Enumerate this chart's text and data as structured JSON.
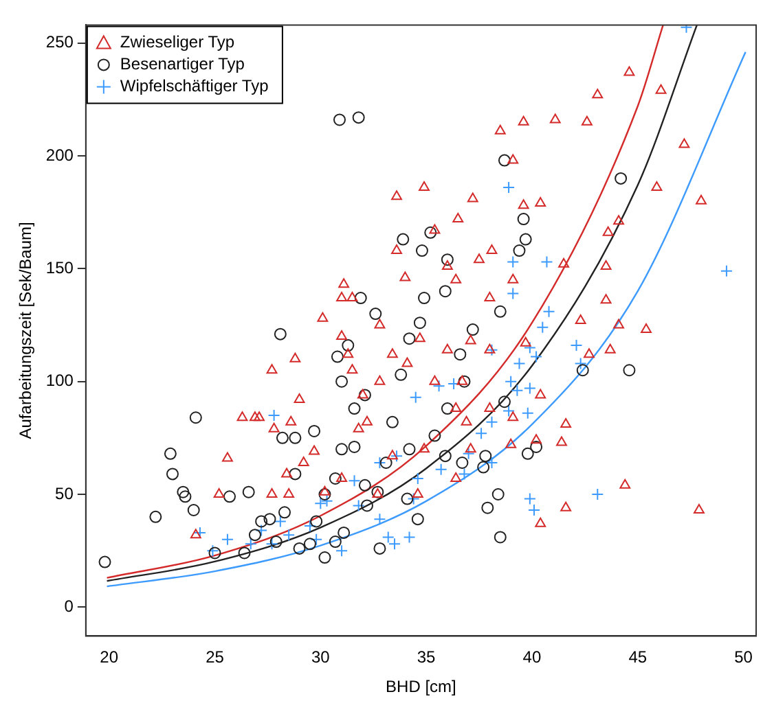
{
  "chart_data": {
    "type": "scatter",
    "xlabel": "BHD [cm]",
    "ylabel": "Aufarbeitungszeit [Sek/Baum]",
    "xlim": [
      18.9,
      50.6
    ],
    "ylim": [
      -12.8,
      258
    ],
    "xticks": [
      20,
      25,
      30,
      35,
      40,
      45,
      50
    ],
    "yticks": [
      0,
      50,
      100,
      150,
      200,
      250
    ],
    "grid": false,
    "legend": "top left",
    "series": [
      {
        "name": "Zwieseliger Typ",
        "color": "#d42a2a",
        "marker": "triangle",
        "x": [
          24.1,
          25.2,
          25.6,
          26.3,
          26.9,
          27.7,
          27.1,
          27.8,
          27.7,
          28.5,
          28.4,
          28.6,
          29.0,
          29.7,
          28.8,
          30.1,
          31.0,
          31.1,
          31.5,
          31.0,
          31.3,
          32.0,
          32.8,
          33.4,
          33.6,
          33.6,
          34.9,
          35.4,
          36.5,
          37.2,
          37.5,
          38.5,
          39.6,
          39.1,
          39.6,
          40.4,
          41.1,
          42.6,
          43.1,
          44.6,
          46.1,
          47.2,
          48.0,
          45.9,
          44.1,
          43.5,
          43.6,
          41.5,
          43.5,
          44.1,
          45.4,
          43.7,
          39.1,
          36.0,
          36.4,
          38.0,
          38.0,
          36.0,
          34.7,
          35.4,
          34.1,
          36.7,
          36.9,
          38.0,
          39.1,
          39.0,
          41.4,
          40.4,
          39.7,
          41.6,
          40.2,
          42.3,
          42.7,
          41.6,
          40.4,
          44.4,
          47.9,
          31.5,
          32.8,
          32.2,
          33.4,
          34.9,
          36.4,
          37.1,
          32.7,
          30.2,
          31.0,
          34.6,
          36.4,
          34.0,
          31.8,
          29.2,
          37.1,
          38.1
        ],
        "values": [
          32,
          50,
          66,
          84,
          84,
          105,
          84,
          79,
          50,
          50,
          59,
          82,
          92,
          69,
          110,
          128,
          137,
          143,
          137,
          120,
          112,
          94,
          125,
          112,
          158,
          182,
          186,
          167,
          172,
          181,
          154,
          211,
          215,
          198,
          178,
          179,
          216,
          215,
          227,
          237,
          229,
          205,
          180,
          186,
          171,
          151,
          166,
          152,
          136,
          125,
          123,
          114,
          145,
          151,
          145,
          137,
          114,
          114,
          119,
          100,
          108,
          100,
          82,
          88,
          84,
          72,
          73,
          94,
          117,
          81,
          74,
          127,
          112,
          44,
          37,
          54,
          43,
          105,
          100,
          82,
          67,
          70,
          88,
          70,
          50,
          51,
          57,
          50,
          57,
          146,
          79,
          64,
          118,
          158
        ]
      },
      {
        "name": "Besenartiger Typ",
        "color": "#222222",
        "marker": "circle",
        "x": [
          19.8,
          22.2,
          22.9,
          24.1,
          23.0,
          23.6,
          24.0,
          23.5,
          25.0,
          25.7,
          26.6,
          26.9,
          27.2,
          26.4,
          27.6,
          28.3,
          28.1,
          28.2,
          28.8,
          29.5,
          29.8,
          30.2,
          30.7,
          29.7,
          30.9,
          31.8,
          30.8,
          31.0,
          31.3,
          31.9,
          32.1,
          32.6,
          31.6,
          31.0,
          30.7,
          31.1,
          32.1,
          32.2,
          33.1,
          33.4,
          34.2,
          33.8,
          34.2,
          34.7,
          33.9,
          35.2,
          36.0,
          34.8,
          34.9,
          35.9,
          37.2,
          38.5,
          38.7,
          39.6,
          39.4,
          39.7,
          44.2,
          44.6,
          42.4,
          40.2,
          39.8,
          37.7,
          36.7,
          35.9,
          38.4,
          37.9,
          38.5,
          37.8,
          36.0,
          36.8,
          35.4,
          32.8,
          32.7,
          34.1,
          34.6,
          30.2,
          29.0,
          27.9,
          28.8,
          31.6,
          38.7,
          36.6
        ],
        "values": [
          20,
          40,
          68,
          84,
          59,
          49,
          43,
          51,
          24,
          49,
          51,
          32,
          38,
          24,
          39,
          42,
          121,
          75,
          75,
          28,
          38,
          50,
          57,
          78,
          216,
          217,
          111,
          100,
          116,
          137,
          94,
          130,
          88,
          70,
          29,
          33,
          54,
          45,
          64,
          82,
          70,
          103,
          119,
          126,
          163,
          166,
          154,
          158,
          137,
          140,
          123,
          131,
          198,
          172,
          158,
          163,
          190,
          105,
          105,
          71,
          68,
          62,
          64,
          67,
          50,
          44,
          31,
          67,
          88,
          100,
          76,
          26,
          51,
          48,
          39,
          22,
          26,
          29,
          59,
          71,
          91,
          112
        ]
      },
      {
        "name": "Wipfelschäftiger Typ",
        "color": "#3d9bff",
        "marker": "cross",
        "x": [
          24.9,
          27.8,
          27.7,
          28.5,
          29.5,
          30.0,
          31.0,
          31.8,
          32.8,
          33.2,
          33.5,
          34.4,
          34.6,
          35.7,
          37.0,
          37.6,
          38.1,
          38.9,
          39.3,
          39.8,
          39.4,
          40.2,
          40.5,
          39.9,
          40.7,
          39.1,
          38.9,
          39.1,
          40.8,
          39.9,
          38.1,
          36.8,
          38.1,
          39.0,
          42.1,
          42.3,
          43.1,
          49.2,
          47.3,
          39.9,
          40.1,
          35.6,
          36.3,
          34.5,
          33.6,
          32.8,
          31.6,
          30.3,
          29.8,
          28.1,
          27.2,
          26.7,
          25.6,
          24.3,
          34.2
        ],
        "values": [
          25,
          85,
          28,
          32,
          36,
          46,
          25,
          45,
          39,
          31,
          28,
          48,
          57,
          61,
          68,
          77,
          82,
          87,
          96,
          86,
          108,
          111,
          124,
          115,
          153,
          153,
          186,
          139,
          131,
          97,
          64,
          59,
          114,
          100,
          116,
          108,
          50,
          149,
          257,
          48,
          43,
          98,
          99,
          93,
          67,
          64,
          56,
          47,
          30,
          38,
          34,
          28,
          30,
          33,
          31
        ]
      },
      {
        "color": "#d42a2a",
        "type": "line",
        "marker": "none",
        "x": [
          19.9,
          25,
          30,
          35,
          40,
          45,
          46.2
        ],
        "values": [
          13,
          22.9,
          40.5,
          71.5,
          126,
          222,
          258
        ]
      },
      {
        "color": "#222222",
        "type": "line",
        "marker": "none",
        "x": [
          19.9,
          25,
          30,
          35,
          40,
          45,
          47.8
        ],
        "values": [
          11.6,
          20.2,
          35.3,
          61.5,
          107,
          187,
          258
        ]
      },
      {
        "color": "#3d9bff",
        "type": "line",
        "marker": "none",
        "x": [
          19.9,
          25,
          30,
          35,
          40,
          45,
          50.1
        ],
        "values": [
          9.2,
          15.9,
          27.3,
          47.0,
          81,
          140,
          246
        ]
      }
    ]
  }
}
